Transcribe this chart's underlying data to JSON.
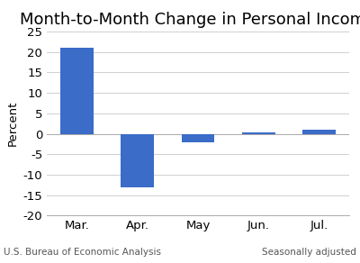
{
  "title": "Month-to-Month Change in Personal Income",
  "x_labels": [
    "Mar.",
    "Apr.",
    "May",
    "Jun.",
    "Jul."
  ],
  "values": [
    21.0,
    -13.0,
    -2.0,
    0.3,
    1.0
  ],
  "bar_color": "#3a6cc8",
  "ylabel": "Percent",
  "ylim": [
    -20,
    25
  ],
  "yticks": [
    -20,
    -15,
    -10,
    -5,
    0,
    5,
    10,
    15,
    20,
    25
  ],
  "footer_left": "U.S. Bureau of Economic Analysis",
  "footer_right": "Seasonally adjusted",
  "bg_color": "#ffffff",
  "grid_color": "#d0d0d0",
  "title_fontsize": 13,
  "axis_fontsize": 9.5,
  "footer_fontsize": 7.5
}
